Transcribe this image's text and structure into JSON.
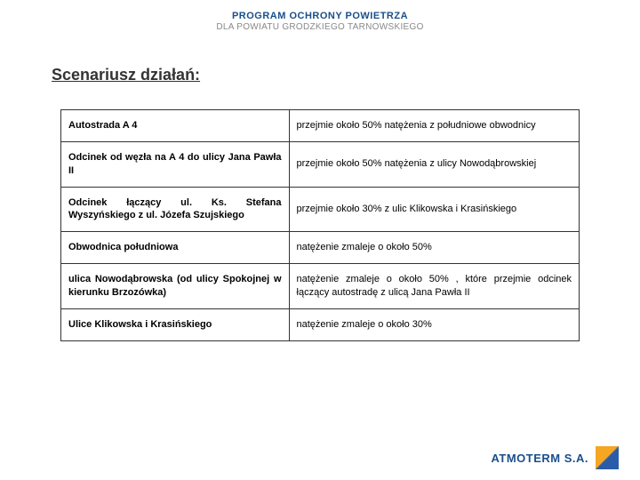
{
  "header": {
    "title": "PROGRAM OCHRONY POWIETRZA",
    "subtitle": "DLA POWIATU GRODZKIEGO TARNOWSKIEGO"
  },
  "section_title": "Scenariusz działań:",
  "table": {
    "rows": [
      {
        "left": "Autostrada A 4",
        "right": "przejmie około 50% natężenia z południowe obwodnicy"
      },
      {
        "left": "Odcinek od węzła na A 4 do ulicy Jana Pawła II",
        "right": "przejmie około 50% natężenia z ulicy Nowodąbrowskiej"
      },
      {
        "left": "Odcinek łączący ul. Ks. Stefana Wyszyńskiego z ul. Józefa Szujskiego",
        "right": "przejmie około 30% z ulic Klikowska i Krasińskiego"
      },
      {
        "left": "Obwodnica południowa",
        "right": "natężenie zmaleje o około 50%"
      },
      {
        "left": "ulica Nowodąbrowska (od ulicy Spokojnej w kierunku Brzozówka)",
        "right": "natężenie zmaleje o około 50% , które przejmie odcinek łączący autostradę z  ulicą Jana Pawła II"
      },
      {
        "left": "Ulice Klikowska i Krasińskiego",
        "right": "natężenie zmaleje o około 30%"
      }
    ]
  },
  "footer": {
    "brand": "ATMOTERM S.A."
  }
}
